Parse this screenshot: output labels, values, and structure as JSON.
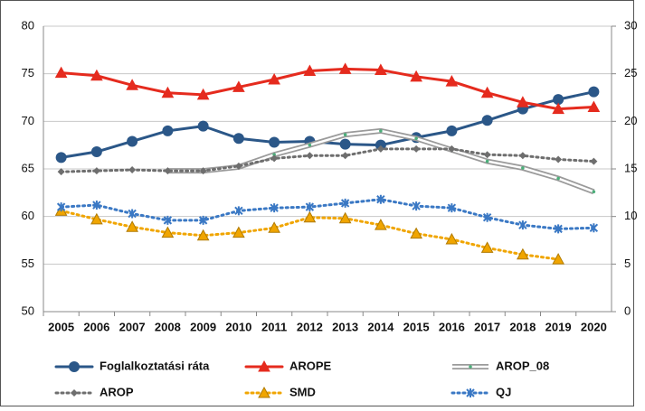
{
  "chart_data": {
    "type": "line",
    "categories": [
      "2005",
      "2006",
      "2007",
      "2008",
      "2009",
      "2010",
      "2011",
      "2012",
      "2013",
      "2014",
      "2015",
      "2016",
      "2017",
      "2018",
      "2019",
      "2020"
    ],
    "ylim": [
      50,
      80
    ],
    "yticks": [
      50,
      55,
      60,
      65,
      70,
      75,
      80
    ],
    "y2lim": [
      0,
      30
    ],
    "y2ticks": [
      0,
      5,
      10,
      15,
      20,
      25,
      30
    ],
    "grid": true,
    "series": [
      {
        "name": "Foglalkoztatási ráta",
        "color": "#2b5788",
        "marker": "circle",
        "dashed": false,
        "values": [
          66.2,
          66.8,
          67.9,
          69.0,
          69.5,
          68.2,
          67.8,
          67.9,
          67.6,
          67.5,
          68.3,
          69.0,
          70.1,
          71.3,
          72.3,
          73.1
        ]
      },
      {
        "name": "AROPE",
        "color": "#e52b1e",
        "marker": "triangle",
        "dashed": false,
        "axis": "y2",
        "values": [
          25.1,
          24.8,
          23.8,
          23.0,
          22.8,
          23.6,
          24.4,
          25.3,
          25.5,
          25.4,
          24.7,
          24.2,
          23.0,
          22.0,
          21.3,
          21.5
        ]
      },
      {
        "name": "AROP_08",
        "color": "#9a9a9a",
        "marker": "double",
        "dashed": false,
        "axis": "y2",
        "values": [
          null,
          null,
          null,
          14.8,
          14.8,
          15.2,
          16.5,
          17.5,
          18.6,
          19.0,
          18.2,
          17.0,
          15.8,
          15.1,
          14.0,
          12.6
        ]
      },
      {
        "name": "AROP",
        "color": "#6e6e6e",
        "marker": "diamond",
        "dashed": true,
        "axis": "y2",
        "values": [
          14.7,
          14.8,
          14.9,
          14.8,
          14.8,
          15.3,
          16.1,
          16.4,
          16.4,
          17.1,
          17.1,
          17.1,
          16.5,
          16.4,
          16.0,
          15.8
        ]
      },
      {
        "name": "SMD",
        "color": "#f0a500",
        "marker": "triangle",
        "dashed": true,
        "axis": "y2",
        "values": [
          10.6,
          9.7,
          8.9,
          8.3,
          8.0,
          8.3,
          8.8,
          9.9,
          9.8,
          9.1,
          8.2,
          7.6,
          6.7,
          6.0,
          5.5,
          null
        ]
      },
      {
        "name": "QJ",
        "color": "#3a78c4",
        "marker": "star",
        "dashed": true,
        "axis": "y2",
        "values": [
          11.0,
          11.2,
          10.3,
          9.6,
          9.6,
          10.6,
          10.9,
          11.0,
          11.4,
          11.8,
          11.1,
          10.9,
          9.9,
          9.1,
          8.7,
          8.8
        ]
      }
    ]
  }
}
